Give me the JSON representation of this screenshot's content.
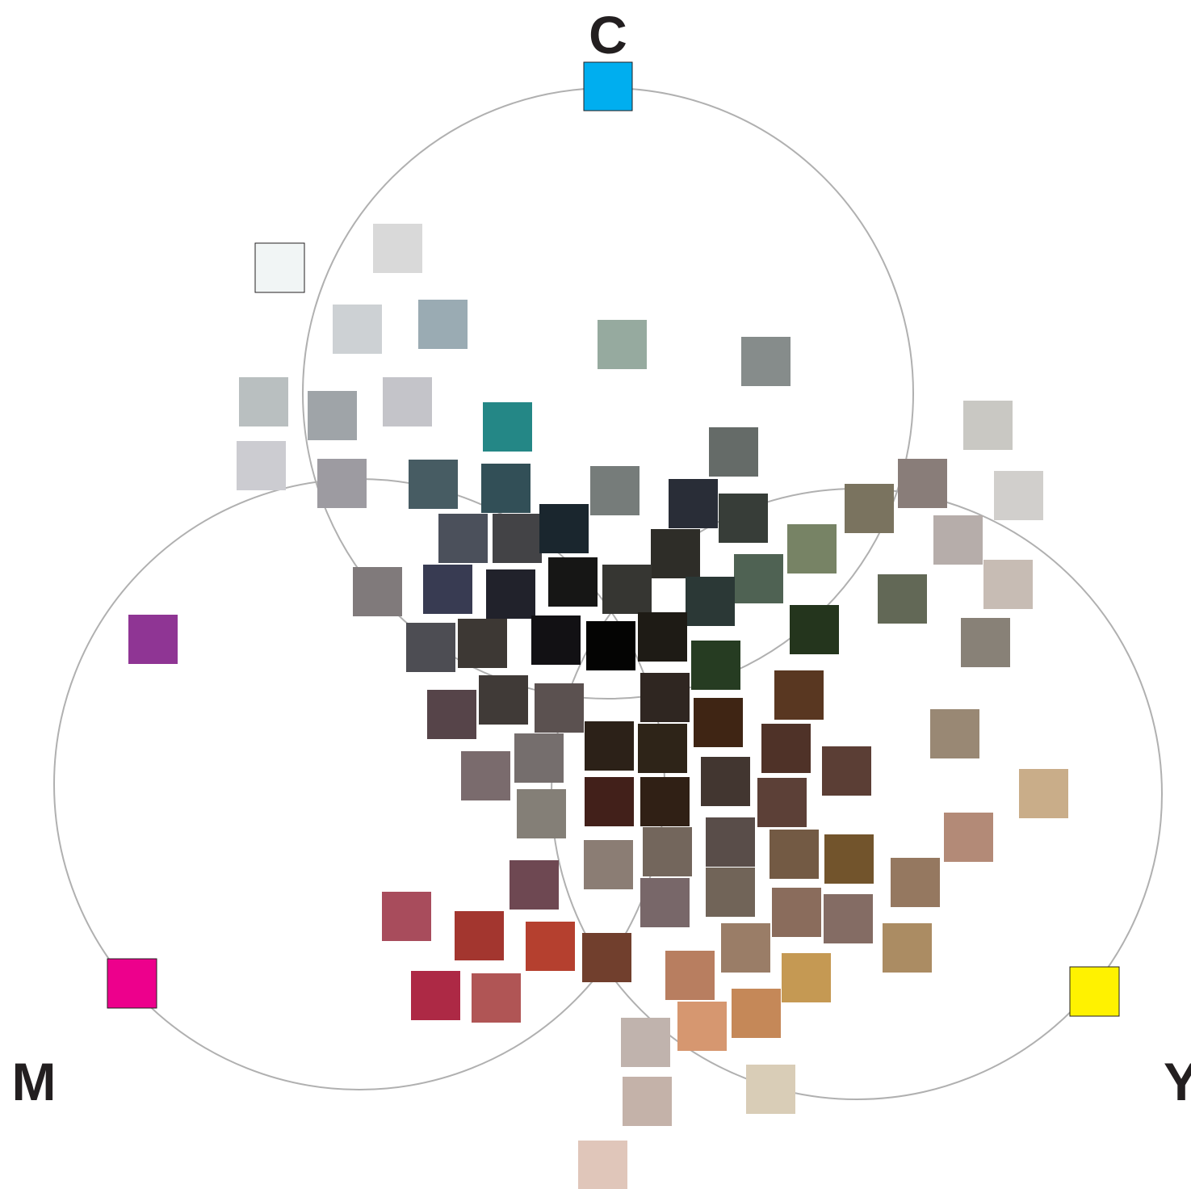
{
  "labels": {
    "c": "C",
    "m": "M",
    "y": "Y"
  },
  "circle_stroke": "#b0b0b0",
  "primaries": {
    "c": "#00aeef",
    "m": "#ec008c",
    "y": "#fff200"
  },
  "swatches": [
    {
      "c": "#f1f5f5",
      "outlined": true
    },
    {
      "c": "#d9d9d9"
    },
    {
      "c": "#cdd1d4"
    },
    {
      "c": "#9aabb3"
    },
    {
      "c": "#96aa9f"
    },
    {
      "c": "#868c8b"
    },
    {
      "c": "#b9bfc0"
    },
    {
      "c": "#9fa4a8"
    },
    {
      "c": "#c4c4c9"
    },
    {
      "c": "#248786"
    },
    {
      "c": "#ccccd1"
    },
    {
      "c": "#9d9ba1"
    },
    {
      "c": "#475c63"
    },
    {
      "c": "#324f57"
    },
    {
      "c": "#767c7a"
    },
    {
      "c": "#656b68"
    },
    {
      "c": "#292d37"
    },
    {
      "c": "#373d38"
    },
    {
      "c": "#4b505b"
    },
    {
      "c": "#434346"
    },
    {
      "c": "#1a262e"
    },
    {
      "c": "#2e2d28"
    },
    {
      "c": "#4f6253"
    },
    {
      "c": "#778365"
    },
    {
      "c": "#7a735f"
    },
    {
      "c": "#897d79"
    },
    {
      "c": "#c9c8c3"
    },
    {
      "c": "#d1cfcc"
    },
    {
      "c": "#b6adaa"
    },
    {
      "c": "#c7bcb4"
    },
    {
      "c": "#626856"
    },
    {
      "c": "#888177"
    },
    {
      "c": "#807a7b"
    },
    {
      "c": "#383b52"
    },
    {
      "c": "#21222b"
    },
    {
      "c": "#161615"
    },
    {
      "c": "#363632"
    },
    {
      "c": "#2b3836"
    },
    {
      "c": "#4d4d53"
    },
    {
      "c": "#3d3834"
    },
    {
      "c": "#121114"
    },
    {
      "c": "#040403"
    },
    {
      "c": "#1e1b15"
    },
    {
      "c": "#263c22"
    },
    {
      "c": "#24351d"
    },
    {
      "c": "#564449"
    },
    {
      "c": "#403a37"
    },
    {
      "c": "#5b5150"
    },
    {
      "c": "#2f2621"
    },
    {
      "c": "#3f2514"
    },
    {
      "c": "#593721"
    },
    {
      "c": "#8f3594"
    },
    {
      "c": "#7a6b6d"
    },
    {
      "c": "#756e6d"
    },
    {
      "c": "#2c2118"
    },
    {
      "c": "#2e2418"
    },
    {
      "c": "#4f3228"
    },
    {
      "c": "#5b3e35"
    },
    {
      "c": "#998874"
    },
    {
      "c": "#847f77"
    },
    {
      "c": "#42201a"
    },
    {
      "c": "#302015"
    },
    {
      "c": "#423630"
    },
    {
      "c": "#5c4037"
    },
    {
      "c": "#c9ad89"
    },
    {
      "c": "#8b7d74"
    },
    {
      "c": "#73665c"
    },
    {
      "c": "#594d49"
    },
    {
      "c": "#735a44"
    },
    {
      "c": "#72542c"
    },
    {
      "c": "#b38a77"
    },
    {
      "c": "#6e4852"
    },
    {
      "c": "#957860"
    },
    {
      "c": "#a84c5c"
    },
    {
      "c": "#786769"
    },
    {
      "c": "#716458"
    },
    {
      "c": "#8a6c5c"
    },
    {
      "c": "#846c64"
    },
    {
      "c": "#a3362f"
    },
    {
      "c": "#b5402f"
    },
    {
      "c": "#ab8c63"
    },
    {
      "c": "#9a7d67"
    },
    {
      "c": "#713f2d"
    },
    {
      "c": "#ed008c",
      "outlined": true
    },
    {
      "c": "#b87e60"
    },
    {
      "c": "#c59953"
    },
    {
      "c": "#fff200",
      "outlined": true
    },
    {
      "c": "#ad2945"
    },
    {
      "c": "#b05555"
    },
    {
      "c": "#c58858"
    },
    {
      "c": "#d69770"
    },
    {
      "c": "#c0b3ad"
    },
    {
      "c": "#d9cdb7"
    },
    {
      "c": "#c4b2a9"
    },
    {
      "c": "#e0c6ba"
    }
  ]
}
